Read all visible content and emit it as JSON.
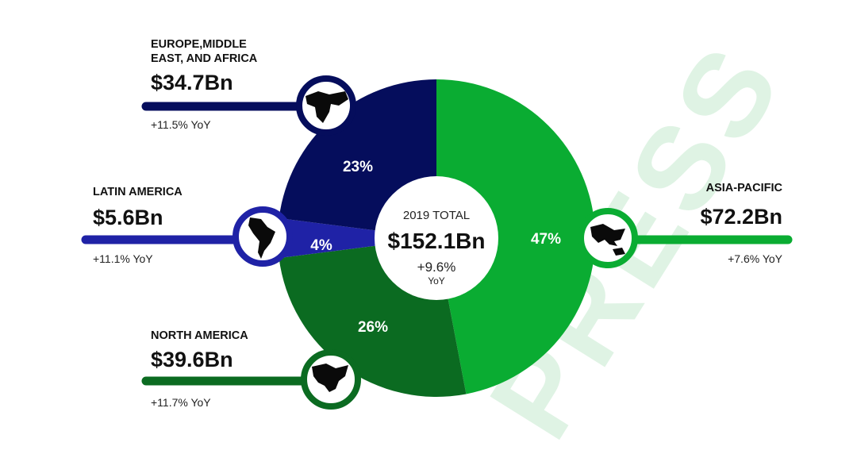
{
  "chart_data": {
    "type": "pie",
    "style": "donut",
    "center": {
      "title": "2019 TOTAL",
      "value": "$152.1Bn",
      "growth": "+9.6%",
      "growth_unit": "YoY"
    },
    "slices": [
      {
        "region": "ASIA-PACIFIC",
        "value_label": "$72.2Bn",
        "value_bn": 72.2,
        "percent": 47,
        "percent_label": "47%",
        "yoy": "+7.6% YoY",
        "color": "#0aac32",
        "icon": "asia-pacific-map-icon",
        "side": "right",
        "label_lines": [
          "ASIA-PACIFIC"
        ]
      },
      {
        "region": "NORTH AMERICA",
        "value_label": "$39.6Bn",
        "value_bn": 39.6,
        "percent": 26,
        "percent_label": "26%",
        "yoy": "+11.7% YoY",
        "color": "#0b6b21",
        "icon": "north-america-map-icon",
        "side": "left",
        "label_lines": [
          "NORTH AMERICA"
        ]
      },
      {
        "region": "LATIN AMERICA",
        "value_label": "$5.6Bn",
        "value_bn": 5.6,
        "percent": 4,
        "percent_label": "4%",
        "yoy": "+11.1% YoY",
        "color": "#1f22a6",
        "icon": "latin-america-map-icon",
        "side": "left",
        "label_lines": [
          "LATIN AMERICA"
        ]
      },
      {
        "region": "EUROPE, MIDDLE EAST, AND AFRICA",
        "value_label": "$34.7Bn",
        "value_bn": 34.7,
        "percent": 23,
        "percent_label": "23%",
        "yoy": "+11.5% YoY",
        "color": "#050d5c",
        "icon": "emea-map-icon",
        "side": "left",
        "label_lines": [
          "EUROPE,MIDDLE",
          "EAST, AND AFRICA"
        ]
      }
    ]
  },
  "watermark": {
    "text": "PRESS",
    "color": "#dff3e4"
  }
}
